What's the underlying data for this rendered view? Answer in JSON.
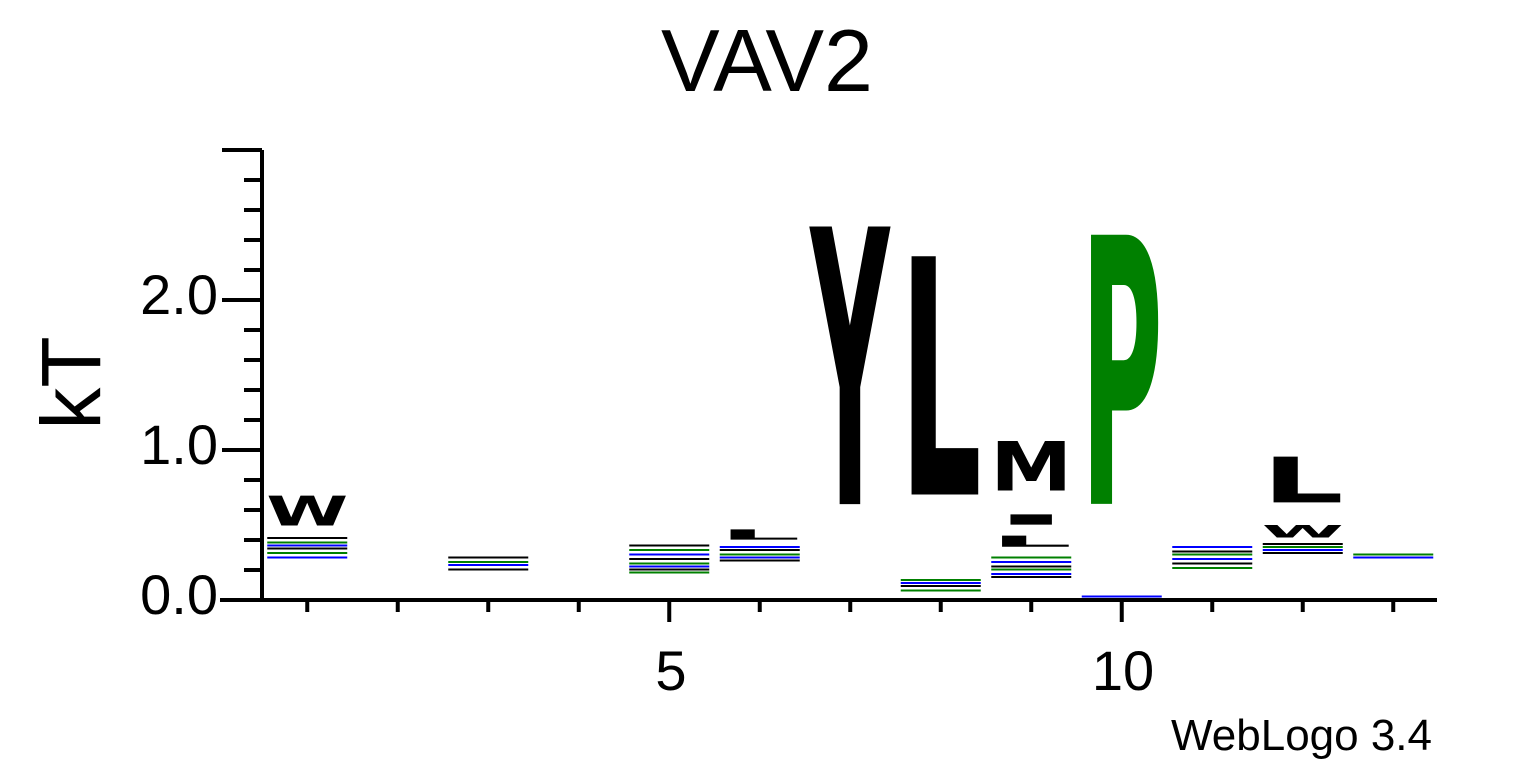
{
  "colors": {
    "hydrophobic": "#000000",
    "proline_glycine": "#008000",
    "polar": "#0000ff",
    "background": "#ffffff"
  },
  "chart_data": {
    "type": "sequence-logo",
    "title": "VAV2",
    "ylabel": "kT",
    "xlabel": "",
    "ylim": [
      0,
      3.0
    ],
    "y_ticks": [
      0.0,
      1.0,
      2.0
    ],
    "y_tick_labels": [
      "0.0",
      "1.0",
      "2.0"
    ],
    "x_ticks": [
      5,
      10
    ],
    "x_tick_labels": [
      "5",
      "10"
    ],
    "positions": [
      1,
      2,
      3,
      4,
      5,
      6,
      7,
      8,
      9,
      10,
      11,
      12,
      13
    ],
    "footer": "WebLogo 3.4",
    "stacks": [
      {
        "position": 1,
        "letters": [
          {
            "char": "W",
            "bottom": 0.43,
            "top": 0.75,
            "color": "#000000"
          }
        ]
      },
      {
        "position": 3,
        "letters": []
      },
      {
        "position": 5,
        "letters": []
      },
      {
        "position": 6,
        "letters": [
          {
            "char": "L",
            "bottom": 0.38,
            "top": 0.49,
            "color": "#000000"
          }
        ]
      },
      {
        "position": 7,
        "letters": [
          {
            "char": "Y",
            "bottom": 0.03,
            "top": 3.0,
            "color": "#000000"
          }
        ]
      },
      {
        "position": 8,
        "letters": [
          {
            "char": "L",
            "bottom": 0.18,
            "top": 2.73,
            "color": "#000000"
          }
        ]
      },
      {
        "position": 9,
        "letters": [
          {
            "char": "L",
            "bottom": 0.33,
            "top": 0.45,
            "color": "#000000"
          },
          {
            "char": "I",
            "bottom": 0.48,
            "top": 0.59,
            "color": "#000000"
          },
          {
            "char": "M",
            "bottom": 0.62,
            "top": 1.15,
            "color": "#000000"
          }
        ]
      },
      {
        "position": 10,
        "letters": [
          {
            "char": "P",
            "bottom": 0.05,
            "top": 2.93,
            "color": "#008000"
          }
        ]
      },
      {
        "position": 11,
        "letters": []
      },
      {
        "position": 12,
        "letters": [
          {
            "char": "W",
            "bottom": 0.39,
            "top": 0.52,
            "color": "#000000"
          },
          {
            "char": "L",
            "bottom": 0.55,
            "top": 1.04,
            "color": "#000000"
          }
        ]
      },
      {
        "position": 13,
        "letters": []
      }
    ]
  }
}
